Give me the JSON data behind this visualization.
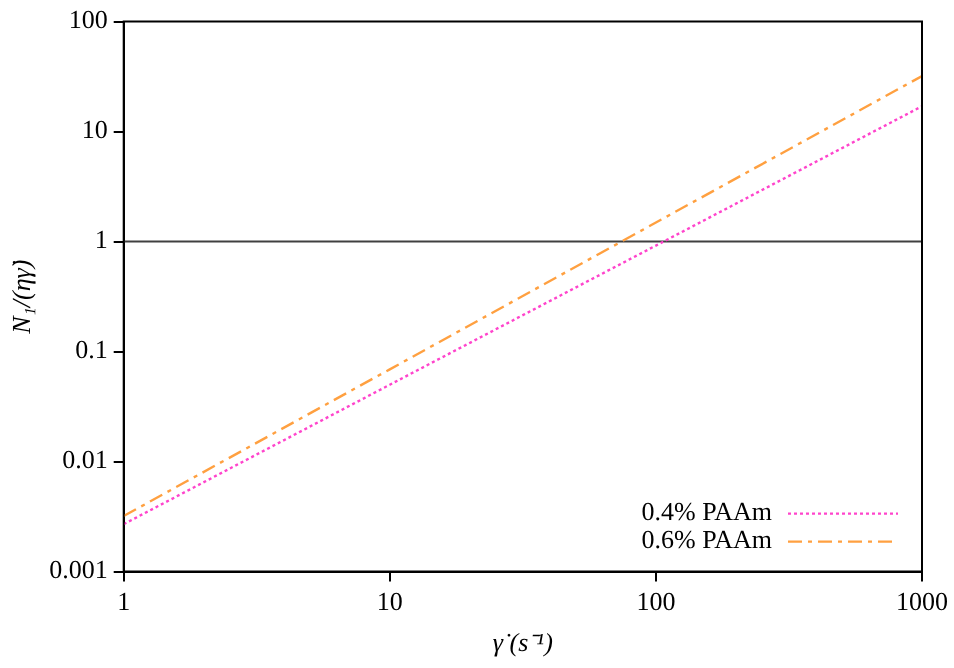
{
  "chart_data": {
    "type": "line",
    "xlabel": "γ̇ (s⁻¹)",
    "ylabel": "N₁/(ηγ̇)",
    "x": [
      1,
      10,
      100,
      1000
    ],
    "series": [
      {
        "name": "0.4% PAAm",
        "color": "#ff44cc",
        "line_style": "dotted",
        "values": [
          0.0027,
          0.05,
          0.92,
          17
        ]
      },
      {
        "name": "0.6% PAAm",
        "color": "#ffa040",
        "line_style": "dashed",
        "values": [
          0.0032,
          0.069,
          1.49,
          32
        ]
      }
    ],
    "log": "xy",
    "xlim": [
      1,
      1000
    ],
    "xticks": [
      1,
      10,
      100,
      1000
    ],
    "ylim": [
      0.001,
      100
    ],
    "yticks": [
      0.001,
      0.01,
      0.1,
      1,
      10,
      100
    ],
    "ref_lines": [
      {
        "axis": "y",
        "value": 1,
        "color": "#404040",
        "line_style": "solid"
      }
    ],
    "grid": false,
    "legend": "bottom right",
    "marker": "none"
  }
}
